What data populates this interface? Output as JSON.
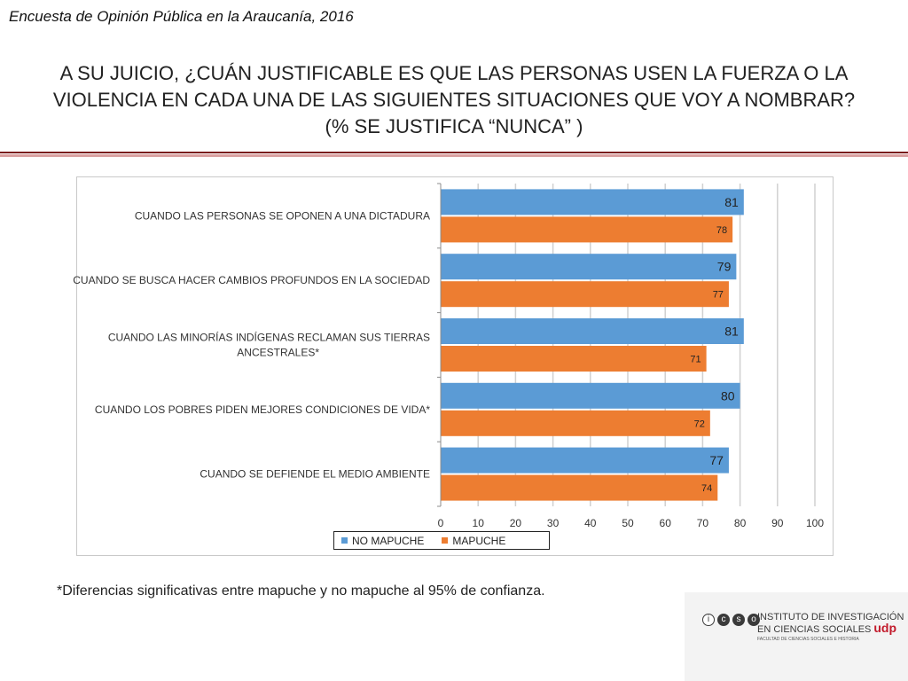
{
  "header": {
    "label": "Encuesta de Opinión Pública en la Araucanía, 2016"
  },
  "title": {
    "line1": "A SU JUICIO, ¿CUÁN JUSTIFICABLE ES QUE LAS PERSONAS USEN LA FUERZA O LA",
    "line2": "VIOLENCIA EN CADA UNA DE LAS SIGUIENTES SITUACIONES QUE VOY A NOMBRAR?",
    "line3": "(% SE JUSTIFICA “NUNCA” )"
  },
  "chart_data": {
    "type": "bar",
    "orientation": "horizontal",
    "categories": [
      "CUANDO LAS PERSONAS SE OPONEN A UNA DICTADURA",
      "CUANDO SE BUSCA HACER CAMBIOS PROFUNDOS EN LA SOCIEDAD",
      "CUANDO LAS MINORÍAS INDÍGENAS RECLAMAN SUS TIERRAS ANCESTRALES*",
      "CUANDO LOS POBRES PIDEN MEJORES CONDICIONES DE VIDA*",
      "CUANDO SE DEFIENDE EL MEDIO AMBIENTE"
    ],
    "category_lines": [
      [
        "CUANDO LAS PERSONAS SE OPONEN A UNA DICTADURA"
      ],
      [
        "CUANDO SE BUSCA HACER CAMBIOS PROFUNDOS EN LA SOCIEDAD"
      ],
      [
        "CUANDO LAS MINORÍAS INDÍGENAS RECLAMAN SUS TIERRAS",
        "ANCESTRALES*"
      ],
      [
        "CUANDO LOS POBRES PIDEN MEJORES CONDICIONES DE VIDA*"
      ],
      [
        "CUANDO SE DEFIENDE EL MEDIO AMBIENTE"
      ]
    ],
    "series": [
      {
        "name": "NO MAPUCHE",
        "color": "#5b9bd5",
        "values": [
          81,
          79,
          81,
          80,
          77
        ]
      },
      {
        "name": "MAPUCHE",
        "color": "#ed7d31",
        "values": [
          78,
          77,
          71,
          72,
          74
        ]
      }
    ],
    "xlim": [
      0,
      100
    ],
    "xticks": [
      0,
      10,
      20,
      30,
      40,
      50,
      60,
      70,
      80,
      90,
      100
    ],
    "grid": true,
    "legend_position": "bottom",
    "xlabel": "",
    "ylabel": ""
  },
  "footnote": "*Diferencias significativas entre mapuche y no mapuche al 95% de confianza.",
  "logo": {
    "letters": [
      "i",
      "c",
      "s",
      "o"
    ],
    "line1": "INSTITUTO DE INVESTIGACIÓN",
    "line2": "EN CIENCIAS SOCIALES",
    "brand": "udp",
    "subline": "FACULTAD DE CIENCIAS SOCIALES E HISTORIA"
  }
}
